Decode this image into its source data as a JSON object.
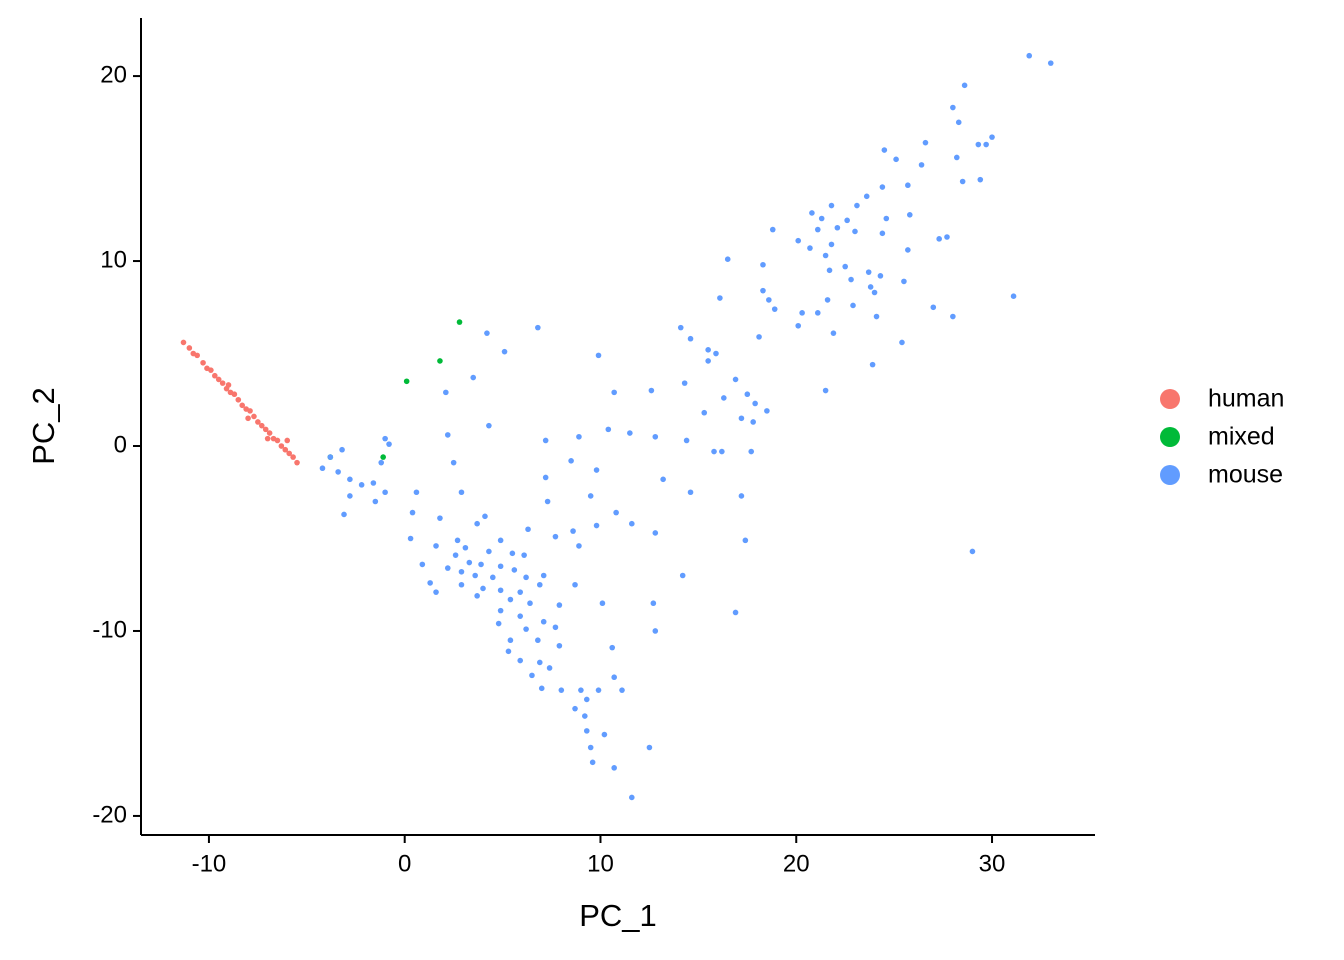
{
  "chart_data": {
    "type": "scatter",
    "x_label": "PC_1",
    "y_label": "PC_2",
    "xlim": [
      -13.47,
      35.26
    ],
    "ylim": [
      -21.03,
      23.14
    ],
    "xticks": [
      -10,
      0,
      10,
      20,
      30
    ],
    "yticks": [
      -20,
      -10,
      0,
      10,
      20
    ],
    "grid": false,
    "legend": "right",
    "series": [
      {
        "name": "human",
        "color": "#F8766D",
        "x": [
          -11.3,
          -11.0,
          -10.8,
          -10.6,
          -10.3,
          -10.1,
          -9.9,
          -9.7,
          -9.5,
          -9.3,
          -9.1,
          -8.9,
          -8.7,
          -8.5,
          -8.3,
          -8.1,
          -7.9,
          -7.7,
          -7.5,
          -7.3,
          -7.1,
          -6.9,
          -6.7,
          -6.5,
          -6.3,
          -6.1,
          -5.9,
          -5.7,
          -5.5,
          -8.0,
          -7.0,
          -9.0,
          -6.0
        ],
        "y": [
          5.6,
          5.3,
          5.0,
          4.9,
          4.5,
          4.2,
          4.1,
          3.8,
          3.6,
          3.4,
          3.1,
          2.9,
          2.8,
          2.5,
          2.2,
          2.0,
          1.9,
          1.6,
          1.3,
          1.1,
          0.9,
          0.7,
          0.4,
          0.3,
          0.0,
          -0.2,
          -0.4,
          -0.6,
          -0.9,
          1.5,
          0.4,
          3.3,
          0.3
        ]
      },
      {
        "name": "mixed",
        "color": "#00BA38",
        "x": [
          -3.8,
          -1.1,
          0.1,
          1.8,
          2.8
        ],
        "y": [
          -0.6,
          -0.6,
          3.5,
          4.6,
          6.7
        ]
      },
      {
        "name": "mouse",
        "color": "#619CFF",
        "x": [
          31.9,
          33.0,
          28.6,
          28.0,
          28.3,
          30.0,
          29.7,
          29.3,
          26.6,
          24.5,
          25.1,
          28.2,
          26.4,
          29.4,
          28.5,
          25.7,
          24.4,
          23.6,
          23.1,
          21.8,
          20.8,
          21.3,
          22.6,
          25.8,
          24.6,
          22.1,
          21.1,
          23.0,
          18.8,
          24.4,
          27.7,
          27.3,
          20.1,
          21.8,
          20.7,
          25.7,
          16.5,
          18.3,
          21.5,
          22.5,
          21.7,
          23.7,
          24.3,
          25.5,
          22.8,
          23.8,
          18.3,
          24.0,
          31.1,
          16.1,
          18.6,
          21.6,
          22.9,
          27.0,
          18.9,
          20.3,
          21.1,
          24.1,
          28.0,
          20.1,
          21.9,
          14.1,
          6.8,
          4.2,
          18.1,
          14.6,
          25.4,
          15.5,
          15.9,
          5.1,
          9.9,
          15.5,
          23.9,
          3.5,
          16.9,
          14.3,
          21.5,
          12.6,
          10.7,
          17.5,
          16.3,
          2.1,
          17.9,
          18.5,
          15.3,
          17.2,
          17.8,
          4.3,
          10.4,
          11.5,
          12.8,
          8.9,
          2.2,
          7.2,
          14.4,
          15.8,
          16.2,
          17.7,
          -1.0,
          -0.8,
          -3.2,
          -3.8,
          -1.2,
          2.5,
          -4.2,
          8.5,
          -3.4,
          -2.8,
          -2.2,
          -1.6,
          -1.0,
          13.2,
          9.8,
          0.6,
          7.2,
          14.6,
          -2.8,
          2.9,
          9.5,
          17.2,
          -1.5,
          7.3,
          -3.1,
          0.4,
          1.8,
          4.1,
          10.8,
          3.7,
          9.8,
          11.6,
          12.8,
          0.3,
          2.7,
          4.9,
          6.3,
          7.7,
          8.6,
          17.4,
          1.6,
          3.1,
          4.3,
          5.5,
          6.1,
          8.9,
          2.6,
          3.3,
          3.9,
          4.9,
          5.6,
          2.2,
          0.9,
          2.9,
          3.6,
          4.5,
          6.2,
          7.1,
          14.2,
          1.3,
          2.9,
          4.0,
          4.9,
          5.9,
          6.9,
          8.7,
          1.6,
          3.7,
          5.4,
          6.4,
          7.9,
          10.1,
          12.7,
          16.9,
          4.9,
          5.9,
          4.8,
          7.1,
          7.7,
          6.2,
          12.8,
          5.4,
          6.8,
          7.9,
          5.3,
          5.9,
          6.9,
          7.4,
          10.6,
          6.5,
          7.0,
          8.0,
          9.0,
          10.7,
          9.9,
          11.1,
          9.3,
          8.7,
          9.2,
          9.3,
          10.2,
          9.5,
          12.5,
          9.6,
          10.7,
          11.6,
          29.0
        ],
        "y": [
          21.1,
          20.7,
          19.5,
          18.3,
          17.5,
          16.7,
          16.3,
          16.3,
          16.4,
          16.0,
          15.5,
          15.6,
          15.2,
          14.4,
          14.3,
          14.1,
          14.0,
          13.5,
          13.0,
          13.0,
          12.6,
          12.3,
          12.2,
          12.5,
          12.3,
          11.8,
          11.7,
          11.6,
          11.7,
          11.5,
          11.3,
          11.2,
          11.1,
          10.9,
          10.7,
          10.6,
          10.1,
          9.8,
          10.3,
          9.7,
          9.5,
          9.4,
          9.2,
          8.9,
          9.0,
          8.6,
          8.4,
          8.3,
          8.1,
          8.0,
          7.9,
          7.9,
          7.6,
          7.5,
          7.4,
          7.2,
          7.2,
          7.0,
          7.0,
          6.5,
          6.1,
          6.4,
          6.4,
          6.1,
          5.9,
          5.8,
          5.6,
          5.2,
          5.0,
          5.1,
          4.9,
          4.6,
          4.4,
          3.7,
          3.6,
          3.4,
          3.0,
          3.0,
          2.9,
          2.8,
          2.6,
          2.9,
          2.3,
          1.9,
          1.8,
          1.5,
          1.3,
          1.1,
          0.9,
          0.7,
          0.5,
          0.5,
          0.6,
          0.3,
          0.3,
          -0.3,
          -0.3,
          -0.3,
          0.4,
          0.1,
          -0.2,
          -0.6,
          -0.9,
          -0.9,
          -1.2,
          -0.8,
          -1.4,
          -1.8,
          -2.1,
          -2.0,
          -2.5,
          -1.8,
          -1.3,
          -2.5,
          -1.7,
          -2.5,
          -2.7,
          -2.5,
          -2.7,
          -2.7,
          -3.0,
          -3.0,
          -3.7,
          -3.6,
          -3.9,
          -3.8,
          -3.6,
          -4.2,
          -4.3,
          -4.2,
          -4.7,
          -5.0,
          -5.1,
          -5.1,
          -4.5,
          -4.9,
          -4.6,
          -5.1,
          -5.4,
          -5.5,
          -5.7,
          -5.8,
          -5.9,
          -5.4,
          -5.9,
          -6.3,
          -6.4,
          -6.5,
          -6.7,
          -6.6,
          -6.4,
          -6.8,
          -7.0,
          -7.1,
          -7.1,
          -7.0,
          -7.0,
          -7.4,
          -7.5,
          -7.7,
          -7.8,
          -7.9,
          -7.5,
          -7.5,
          -7.9,
          -8.1,
          -8.3,
          -8.5,
          -8.6,
          -8.5,
          -8.5,
          -9.0,
          -8.9,
          -9.2,
          -9.6,
          -9.5,
          -9.8,
          -9.9,
          -10.0,
          -10.5,
          -10.5,
          -10.8,
          -11.1,
          -11.6,
          -11.7,
          -12.0,
          -10.9,
          -12.4,
          -13.1,
          -13.2,
          -13.2,
          -12.5,
          -13.2,
          -13.2,
          -13.7,
          -14.2,
          -14.6,
          -15.4,
          -15.6,
          -16.3,
          -16.3,
          -17.1,
          -17.4,
          -19.0,
          -5.7
        ]
      }
    ]
  }
}
